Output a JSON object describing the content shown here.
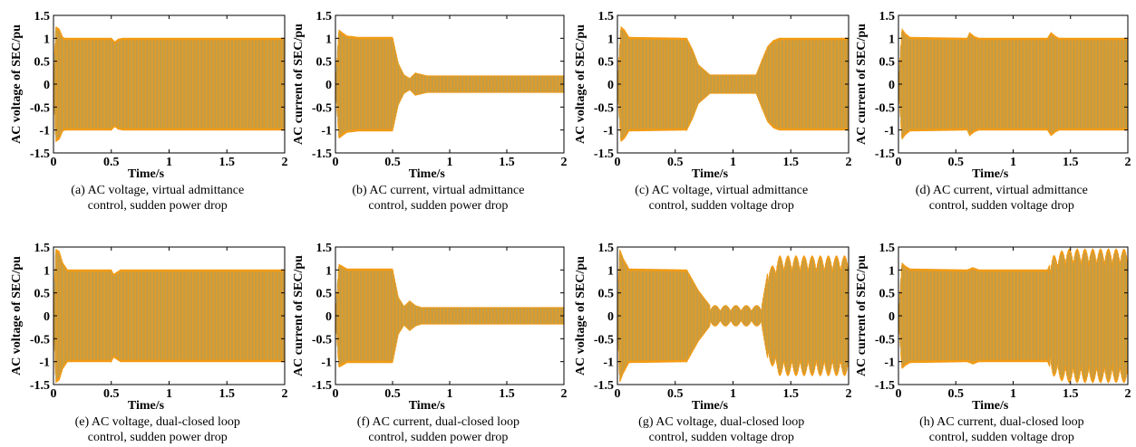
{
  "chart_data": [
    {
      "id": "a",
      "type": "line",
      "caption_lines": [
        "(a) AC voltage, virtual admittance",
        "control, sudden power drop"
      ],
      "xlabel": "Time/s",
      "ylabel": "AC voltage of SEC/pu",
      "xlim": [
        0,
        2
      ],
      "ylim": [
        -1.5,
        1.5
      ],
      "x_ticks": [
        "0",
        "0.5",
        "1",
        "1.5",
        "2"
      ],
      "y_ticks": [
        "-1.5",
        "-1",
        "-0.5",
        "0",
        "0.5",
        "1",
        "1.5"
      ],
      "series": [
        {
          "x": [
            0,
            0.02,
            0.05,
            0.08,
            0.1,
            0.5,
            0.53,
            0.56,
            0.6,
            2.0
          ],
          "amplitude": [
            0,
            1.25,
            1.2,
            1.02,
            1.0,
            1.0,
            0.92,
            0.98,
            1.0,
            1.0
          ]
        }
      ]
    },
    {
      "id": "b",
      "type": "line",
      "caption_lines": [
        "(b) AC current, virtual admittance",
        "control, sudden power drop"
      ],
      "xlabel": "Time/s",
      "ylabel": "AC current of SEC/pu",
      "xlim": [
        0,
        2
      ],
      "ylim": [
        -1.5,
        1.5
      ],
      "x_ticks": [
        "0",
        "0.5",
        "1",
        "1.5",
        "2"
      ],
      "y_ticks": [
        "-1.5",
        "-1",
        "-0.5",
        "0",
        "0.5",
        "1",
        "1.5"
      ],
      "series": [
        {
          "x": [
            0,
            0.03,
            0.06,
            0.1,
            0.2,
            0.5,
            0.55,
            0.6,
            0.65,
            0.7,
            0.8,
            2.0
          ],
          "amplitude": [
            0,
            1.18,
            1.12,
            1.05,
            1.02,
            1.02,
            0.45,
            0.2,
            0.12,
            0.24,
            0.18,
            0.18
          ]
        }
      ]
    },
    {
      "id": "c",
      "type": "line",
      "caption_lines": [
        "(c) AC voltage, virtual admittance",
        "control, sudden voltage drop"
      ],
      "xlabel": "Time/s",
      "ylabel": "AC voltage of SEC/pu",
      "xlim": [
        0,
        2
      ],
      "ylim": [
        -1.5,
        1.5
      ],
      "x_ticks": [
        "0",
        "0.5",
        "1",
        "1.5",
        "2"
      ],
      "y_ticks": [
        "-1.5",
        "-1",
        "-0.5",
        "0",
        "0.5",
        "1",
        "1.5"
      ],
      "series": [
        {
          "x": [
            0,
            0.03,
            0.06,
            0.1,
            0.6,
            0.65,
            0.7,
            0.8,
            1.2,
            1.25,
            1.3,
            1.35,
            1.4,
            2.0
          ],
          "amplitude": [
            0,
            1.25,
            1.18,
            1.02,
            1.0,
            0.75,
            0.42,
            0.2,
            0.2,
            0.52,
            0.82,
            0.95,
            1.0,
            1.0
          ]
        }
      ]
    },
    {
      "id": "d",
      "type": "line",
      "caption_lines": [
        "(d) AC current, virtual admittance",
        "control, sudden voltage drop"
      ],
      "xlabel": "Time/s",
      "ylabel": "AC current of SEC/pu",
      "xlim": [
        0,
        2
      ],
      "ylim": [
        -1.5,
        1.5
      ],
      "x_ticks": [
        "0",
        "0.5",
        "1",
        "1.5",
        "2"
      ],
      "y_ticks": [
        "-1.5",
        "-1",
        "-0.5",
        "0",
        "0.5",
        "1",
        "1.5"
      ],
      "series": [
        {
          "x": [
            0,
            0.03,
            0.06,
            0.1,
            0.6,
            0.62,
            0.66,
            0.7,
            1.3,
            1.33,
            1.37,
            1.4,
            2.0
          ],
          "amplitude": [
            0,
            1.2,
            1.1,
            1.02,
            1.0,
            1.12,
            1.04,
            1.0,
            1.0,
            1.12,
            1.04,
            1.0,
            1.0
          ]
        }
      ]
    },
    {
      "id": "e",
      "type": "line",
      "caption_lines": [
        "(e) AC voltage, dual-closed loop",
        "control, sudden power drop"
      ],
      "xlabel": "Time/s",
      "ylabel": "AC voltage of SEC/pu",
      "xlim": [
        0,
        2
      ],
      "ylim": [
        -1.5,
        1.5
      ],
      "x_ticks": [
        "0",
        "0.5",
        "1",
        "1.5",
        "2"
      ],
      "y_ticks": [
        "-1.5",
        "-1",
        "-0.5",
        "0",
        "0.5",
        "1",
        "1.5"
      ],
      "series": [
        {
          "x": [
            0,
            0.02,
            0.05,
            0.08,
            0.12,
            0.5,
            0.52,
            0.55,
            0.58,
            2.0
          ],
          "amplitude": [
            0,
            1.45,
            1.4,
            1.15,
            1.0,
            1.0,
            0.9,
            0.95,
            1.0,
            1.0
          ]
        }
      ]
    },
    {
      "id": "f",
      "type": "line",
      "caption_lines": [
        "(f) AC current, dual-closed loop",
        "control, sudden power drop"
      ],
      "xlabel": "Time/s",
      "ylabel": "AC current of SEC/pu",
      "xlim": [
        0,
        2
      ],
      "ylim": [
        -1.5,
        1.5
      ],
      "x_ticks": [
        "0",
        "0.5",
        "1",
        "1.5",
        "2"
      ],
      "y_ticks": [
        "-1.5",
        "-1",
        "-0.5",
        "0",
        "0.5",
        "1",
        "1.5"
      ],
      "series": [
        {
          "x": [
            0,
            0.03,
            0.06,
            0.1,
            0.5,
            0.55,
            0.6,
            0.65,
            0.7,
            0.75,
            0.85,
            2.0
          ],
          "amplitude": [
            0,
            1.12,
            1.08,
            1.02,
            1.02,
            0.4,
            0.2,
            0.32,
            0.22,
            0.18,
            0.18,
            0.18
          ]
        }
      ]
    },
    {
      "id": "g",
      "type": "line",
      "caption_lines": [
        "(g) AC voltage, dual-closed loop",
        "control, sudden voltage drop"
      ],
      "xlabel": "Time/s",
      "ylabel": "AC voltage of SEC/pu",
      "xlim": [
        0,
        2
      ],
      "ylim": [
        -1.5,
        1.5
      ],
      "x_ticks": [
        "0",
        "0.5",
        "1",
        "1.5",
        "2"
      ],
      "y_ticks": [
        "-1.5",
        "-1",
        "-0.5",
        "0",
        "0.5",
        "1",
        "1.5"
      ],
      "series": [
        {
          "x": [
            0,
            0.02,
            0.05,
            0.1,
            0.6,
            0.7,
            0.8,
            1.25,
            1.3,
            1.4,
            2.0
          ],
          "amplitude": [
            0,
            1.45,
            1.25,
            1.02,
            1.0,
            0.55,
            0.22,
            0.22,
            0.95,
            1.3,
            1.3
          ]
        }
      ],
      "envelope_beat": {
        "x_start": 0.8,
        "x_end": 1.25,
        "depth": 0.55,
        "cycles": 5
      },
      "envelope_beat_2": {
        "x_start": 1.3,
        "x_end": 2.0,
        "depth": 0.25,
        "cycles": 10
      }
    },
    {
      "id": "h",
      "type": "line",
      "caption_lines": [
        "(h) AC current, dual-closed loop",
        "control, sudden voltage drop"
      ],
      "xlabel": "Time/s",
      "ylabel": "AC current of SEC/pu",
      "xlim": [
        0,
        2
      ],
      "ylim": [
        -1.5,
        1.5
      ],
      "x_ticks": [
        "0",
        "0.5",
        "1",
        "1.5",
        "2"
      ],
      "y_ticks": [
        "-1.5",
        "-1",
        "-0.5",
        "0",
        "0.5",
        "1",
        "1.5"
      ],
      "series": [
        {
          "x": [
            0,
            0.03,
            0.06,
            0.1,
            0.6,
            0.65,
            0.7,
            1.3,
            1.35,
            1.45,
            2.0
          ],
          "amplitude": [
            0,
            1.15,
            1.08,
            1.02,
            1.0,
            1.05,
            1.0,
            1.0,
            1.3,
            1.45,
            1.45
          ]
        }
      ],
      "envelope_beat_2": {
        "x_start": 1.32,
        "x_end": 2.0,
        "depth": 0.22,
        "cycles": 10
      }
    }
  ],
  "colors": {
    "wave_primary": "#f29b16",
    "wave_secondary": "#4aa3c8",
    "axis": "#000000"
  }
}
